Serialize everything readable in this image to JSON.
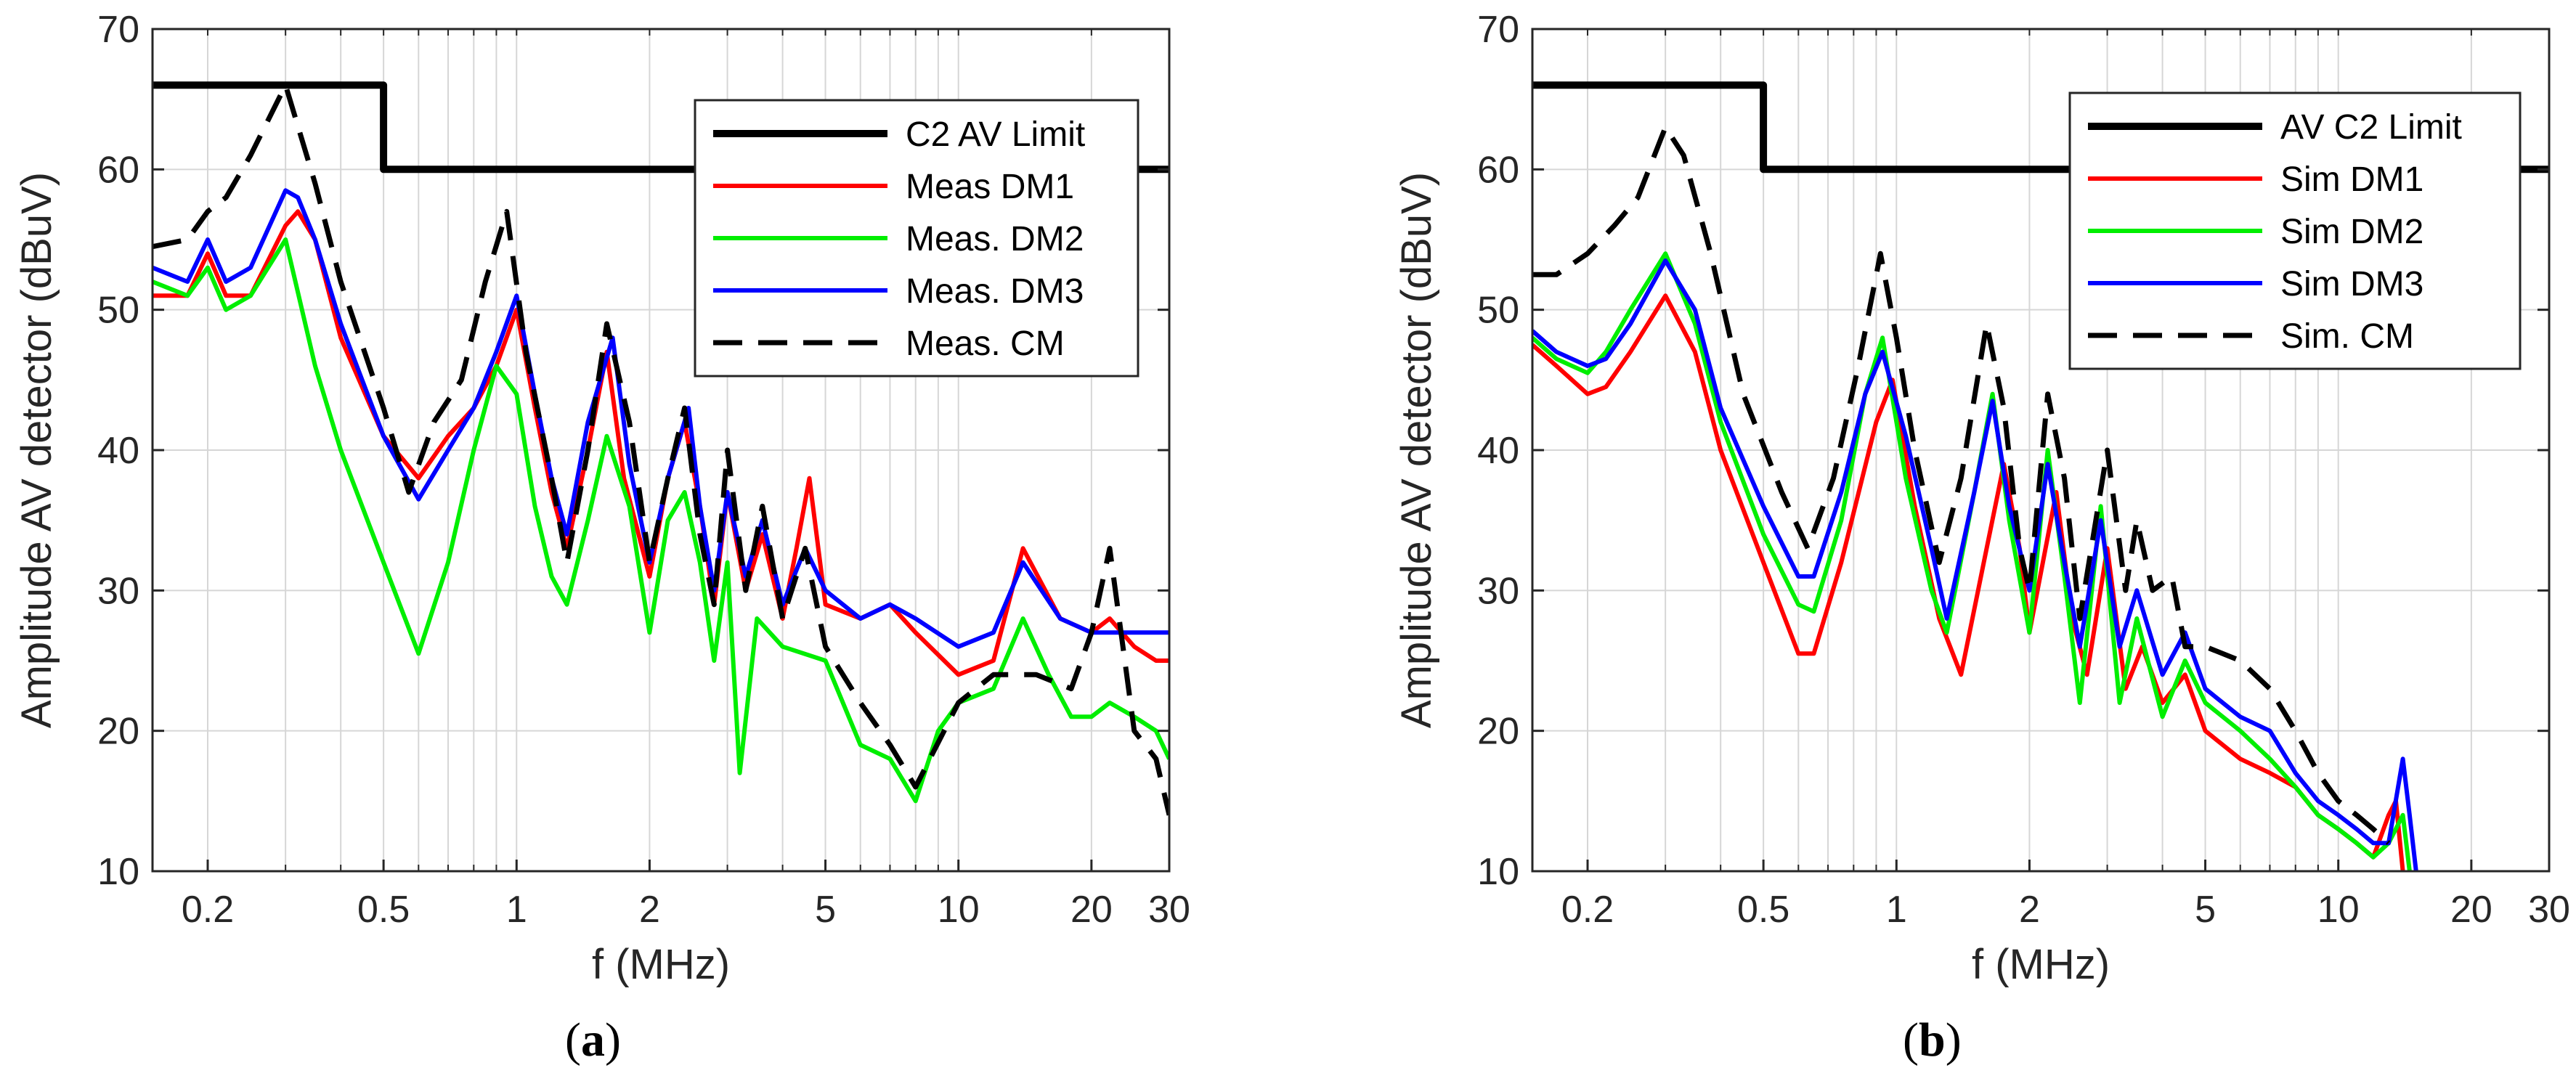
{
  "figure": {
    "caption_a": {
      "open": "(",
      "letter": "a",
      "close": ")"
    },
    "caption_b": {
      "open": "(",
      "letter": "b",
      "close": ")"
    }
  },
  "chart_data": [
    {
      "type": "line",
      "panel": "a",
      "xscale": "log",
      "xlabel": "f (MHz)",
      "ylabel": "Amplitude AV detector (dBuV)",
      "xlim": [
        0.15,
        30
      ],
      "ylim": [
        10,
        70
      ],
      "x_ticks": [
        0.2,
        0.5,
        1,
        2,
        5,
        10,
        20,
        30
      ],
      "x_tick_labels": [
        "0.2",
        "0.5",
        "1",
        "2",
        "5",
        "10",
        "20",
        "30"
      ],
      "y_ticks": [
        10,
        20,
        30,
        40,
        50,
        60,
        70
      ],
      "y_tick_labels": [
        "10",
        "20",
        "30",
        "40",
        "50",
        "60",
        "70"
      ],
      "grid": true,
      "legend_position": "top-right",
      "series": [
        {
          "name": "C2 AV Limit",
          "color": "#000000",
          "dash": "solid",
          "width": 10,
          "x": [
            0.15,
            0.5,
            0.5,
            30
          ],
          "y": [
            66,
            66,
            60,
            60
          ]
        },
        {
          "name": "Meas DM1",
          "color": "#ff0000",
          "dash": "solid",
          "width": 6,
          "x": [
            0.15,
            0.18,
            0.2,
            0.22,
            0.25,
            0.3,
            0.32,
            0.35,
            0.4,
            0.5,
            0.6,
            0.7,
            0.8,
            0.9,
            1.0,
            1.1,
            1.2,
            1.3,
            1.45,
            1.6,
            1.75,
            2.0,
            2.2,
            2.4,
            2.6,
            2.8,
            3.0,
            3.3,
            3.6,
            4.0,
            4.3,
            4.6,
            5.0,
            6.0,
            7.0,
            8.0,
            10,
            12,
            14,
            17,
            20,
            22,
            25,
            28,
            30
          ],
          "y": [
            51,
            51,
            54,
            51,
            51,
            56,
            57,
            55,
            48,
            41,
            38,
            41,
            43,
            46,
            50,
            43,
            37,
            33,
            40,
            47,
            38,
            31,
            38,
            42,
            36,
            29,
            37,
            30,
            34,
            28,
            33,
            38,
            29,
            28,
            29,
            27,
            24,
            25,
            33,
            28,
            27,
            28,
            26,
            25,
            25
          ]
        },
        {
          "name": "Meas. DM2",
          "color": "#00ee00",
          "dash": "solid",
          "width": 6,
          "x": [
            0.15,
            0.18,
            0.2,
            0.22,
            0.25,
            0.3,
            0.35,
            0.4,
            0.5,
            0.6,
            0.7,
            0.8,
            0.9,
            1.0,
            1.1,
            1.2,
            1.3,
            1.45,
            1.6,
            1.8,
            2.0,
            2.2,
            2.4,
            2.6,
            2.8,
            3.0,
            3.2,
            3.5,
            4.0,
            5.0,
            6.0,
            7.0,
            8.0,
            9.0,
            10,
            12,
            14,
            16,
            18,
            20,
            22,
            25,
            28,
            30
          ],
          "y": [
            52,
            51,
            53,
            50,
            51,
            55,
            46,
            40,
            32,
            25.5,
            32,
            40,
            46,
            44,
            36,
            31,
            29,
            35,
            41,
            36,
            27,
            35,
            37,
            32,
            25,
            32,
            17,
            28,
            26,
            25,
            19,
            18,
            15,
            20,
            22,
            23,
            28,
            24,
            21,
            21,
            22,
            21,
            20,
            18
          ]
        },
        {
          "name": "Meas. DM3",
          "color": "#0000ff",
          "dash": "solid",
          "width": 6,
          "x": [
            0.15,
            0.18,
            0.2,
            0.22,
            0.25,
            0.3,
            0.32,
            0.35,
            0.4,
            0.5,
            0.6,
            0.7,
            0.8,
            0.9,
            1.0,
            1.1,
            1.2,
            1.3,
            1.45,
            1.65,
            1.8,
            2.0,
            2.2,
            2.45,
            2.6,
            2.8,
            3.0,
            3.3,
            3.6,
            4.0,
            4.5,
            5.0,
            6.0,
            7.0,
            8.0,
            10,
            12,
            14,
            17,
            20,
            25,
            30
          ],
          "y": [
            53,
            52,
            55,
            52,
            53,
            58.5,
            58,
            55,
            49,
            41,
            36.5,
            40,
            43,
            47,
            51,
            44,
            38,
            34,
            42,
            48,
            39,
            32,
            38,
            43,
            36,
            30,
            37,
            31,
            35,
            29,
            33,
            30,
            28,
            29,
            28,
            26,
            27,
            32,
            28,
            27,
            27,
            27
          ]
        },
        {
          "name": "Meas. CM",
          "color": "#000000",
          "dash": "dashed",
          "width": 7,
          "x": [
            0.15,
            0.18,
            0.2,
            0.22,
            0.25,
            0.3,
            0.35,
            0.4,
            0.5,
            0.57,
            0.65,
            0.75,
            0.85,
            0.95,
            1.05,
            1.2,
            1.3,
            1.45,
            1.6,
            1.8,
            2.0,
            2.2,
            2.4,
            2.6,
            2.8,
            3.0,
            3.3,
            3.6,
            4.0,
            4.5,
            5.0,
            6.0,
            7.0,
            8.0,
            10,
            12,
            15,
            18,
            20,
            22,
            25,
            28,
            30
          ],
          "y": [
            54.5,
            55,
            57,
            58,
            61,
            66,
            59,
            52,
            43,
            37,
            42,
            45,
            52,
            57,
            47,
            38,
            32,
            40,
            49,
            42,
            32,
            38,
            43,
            34,
            29,
            40,
            30,
            36,
            28,
            33,
            26,
            22,
            19,
            16,
            22,
            24,
            24,
            23,
            27,
            33,
            20,
            18,
            14
          ]
        }
      ]
    },
    {
      "type": "line",
      "panel": "b",
      "xscale": "log",
      "xlabel": "f (MHz)",
      "ylabel": "Amplitude AV detector (dBuV)",
      "xlim": [
        0.15,
        30
      ],
      "ylim": [
        10,
        70
      ],
      "x_ticks": [
        0.2,
        0.5,
        1,
        2,
        5,
        10,
        20,
        30
      ],
      "x_tick_labels": [
        "0.2",
        "0.5",
        "1",
        "2",
        "5",
        "10",
        "20",
        "30"
      ],
      "y_ticks": [
        10,
        20,
        30,
        40,
        50,
        60,
        70
      ],
      "y_tick_labels": [
        "10",
        "20",
        "30",
        "40",
        "50",
        "60",
        "70"
      ],
      "grid": true,
      "legend_position": "top-right",
      "series": [
        {
          "name": "AV C2 Limit",
          "color": "#000000",
          "dash": "solid",
          "width": 10,
          "x": [
            0.15,
            0.5,
            0.5,
            30
          ],
          "y": [
            66,
            66,
            60,
            60
          ]
        },
        {
          "name": "Sim DM1",
          "color": "#ff0000",
          "dash": "solid",
          "width": 6,
          "x": [
            0.15,
            0.17,
            0.2,
            0.22,
            0.25,
            0.3,
            0.35,
            0.4,
            0.5,
            0.6,
            0.65,
            0.75,
            0.9,
            0.98,
            1.1,
            1.25,
            1.4,
            1.6,
            1.75,
            1.9,
            2.0,
            2.3,
            2.5,
            2.7,
            3.0,
            3.3,
            3.6,
            4.0,
            4.5,
            5.0,
            6.0,
            7.0,
            8.0,
            9.0,
            10,
            11,
            12,
            13,
            13.5,
            14
          ],
          "y": [
            47.5,
            46,
            44,
            44.5,
            47,
            51,
            47,
            40,
            32,
            25.5,
            25.5,
            32,
            42,
            45,
            36,
            28,
            24,
            33,
            39,
            33,
            27,
            37,
            28,
            24,
            33,
            23,
            26,
            22,
            24,
            20,
            18,
            17,
            16,
            14,
            13,
            12,
            11,
            14,
            15,
            10
          ]
        },
        {
          "name": "Sim DM2",
          "color": "#00ee00",
          "dash": "solid",
          "width": 6,
          "x": [
            0.15,
            0.17,
            0.2,
            0.22,
            0.25,
            0.3,
            0.35,
            0.4,
            0.5,
            0.6,
            0.65,
            0.75,
            0.85,
            0.93,
            1.05,
            1.2,
            1.3,
            1.5,
            1.65,
            1.8,
            2.0,
            2.2,
            2.4,
            2.6,
            2.9,
            3.2,
            3.5,
            4.0,
            4.5,
            5.0,
            6.0,
            7.0,
            8.0,
            9.0,
            10,
            11,
            12,
            13,
            14,
            14.5
          ],
          "y": [
            48,
            46.5,
            45.5,
            47,
            50,
            54,
            49,
            42,
            34,
            29,
            28.5,
            35,
            44,
            48,
            38,
            30,
            27,
            37,
            44,
            35,
            27,
            40,
            31,
            22,
            36,
            22,
            28,
            21,
            25,
            22,
            20,
            18,
            16,
            14,
            13,
            12,
            11,
            12,
            14,
            10
          ]
        },
        {
          "name": "Sim DM3",
          "color": "#0000ff",
          "dash": "solid",
          "width": 6,
          "x": [
            0.15,
            0.17,
            0.2,
            0.22,
            0.25,
            0.3,
            0.35,
            0.4,
            0.5,
            0.6,
            0.65,
            0.75,
            0.85,
            0.93,
            1.05,
            1.2,
            1.3,
            1.5,
            1.65,
            1.8,
            2.0,
            2.2,
            2.4,
            2.6,
            2.9,
            3.2,
            3.5,
            4.0,
            4.5,
            5.0,
            6.0,
            7.0,
            8.0,
            9.0,
            10,
            11,
            12,
            13,
            14,
            14.5,
            15
          ],
          "y": [
            48.5,
            47,
            46,
            46.5,
            49,
            53.5,
            50,
            43,
            36,
            31,
            31,
            37,
            44,
            47,
            41,
            33,
            28,
            37,
            43.5,
            36,
            30,
            39,
            32,
            26,
            35,
            26,
            30,
            24,
            27,
            23,
            21,
            20,
            17,
            15,
            14,
            13,
            12,
            12,
            18,
            14,
            10
          ]
        },
        {
          "name": "Sim. CM",
          "color": "#000000",
          "dash": "dashed",
          "width": 7,
          "x": [
            0.15,
            0.17,
            0.2,
            0.23,
            0.26,
            0.3,
            0.33,
            0.38,
            0.45,
            0.55,
            0.63,
            0.72,
            0.82,
            0.92,
            1.0,
            1.1,
            1.25,
            1.4,
            1.6,
            1.75,
            1.9,
            2.0,
            2.2,
            2.4,
            2.6,
            3.0,
            3.3,
            3.5,
            3.8,
            4.2,
            4.5,
            5.0,
            6.0,
            7.0,
            8.0,
            9.0,
            10,
            11,
            12,
            13
          ],
          "y": [
            52.5,
            52.5,
            54,
            56,
            58,
            63,
            61,
            54,
            44,
            37,
            33,
            38,
            46,
            54,
            48,
            40,
            32,
            38,
            49,
            43,
            33,
            30,
            44,
            38,
            28,
            40,
            30,
            35,
            30,
            31,
            26,
            26,
            25,
            23,
            20,
            17,
            15,
            14,
            13,
            12
          ]
        }
      ]
    }
  ]
}
